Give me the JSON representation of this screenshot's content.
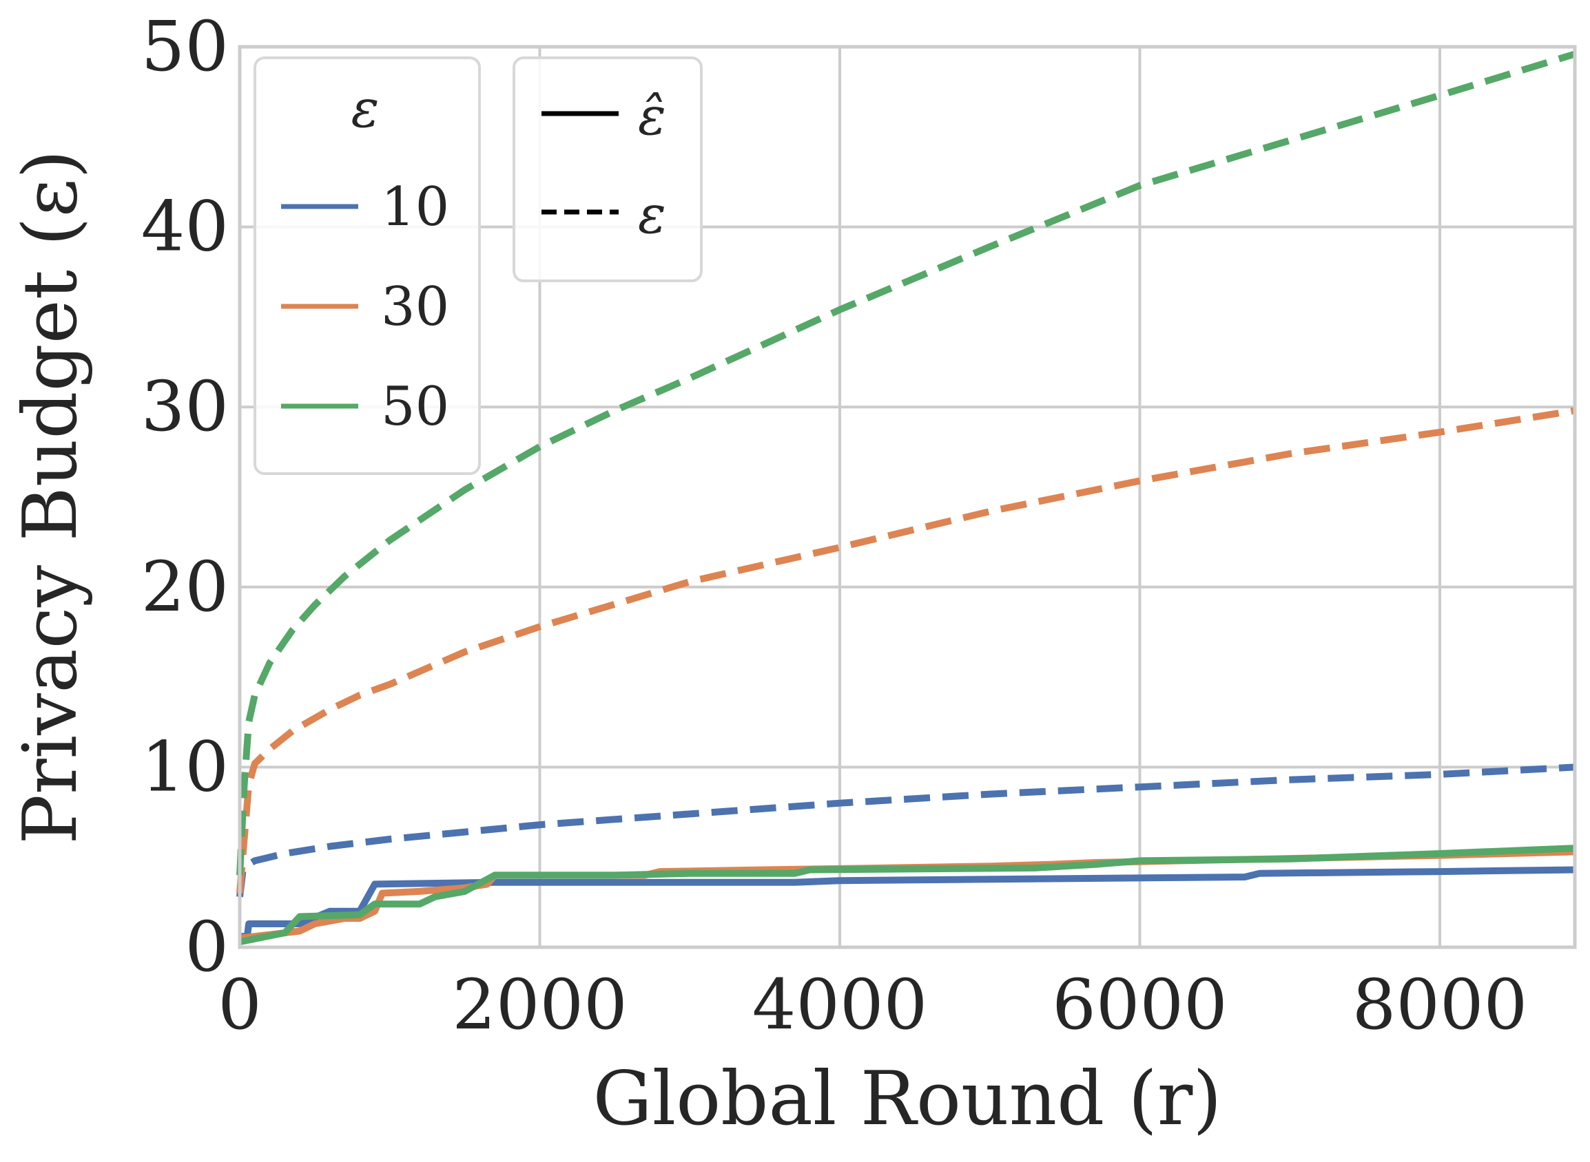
{
  "chart_data": {
    "type": "line",
    "xlabel": "Global Round (r)",
    "ylabel": "Privacy Budget (ε)",
    "xlim": [
      0,
      8900
    ],
    "ylim": [
      0,
      50
    ],
    "xticks": [
      0,
      2000,
      4000,
      6000,
      8000
    ],
    "yticks": [
      0,
      10,
      20,
      30,
      40,
      50
    ],
    "grid": true,
    "legends": [
      {
        "placement": "top-left",
        "title": "ε",
        "entries": [
          {
            "label": "10",
            "color": "#4c72b0"
          },
          {
            "label": "30",
            "color": "#dd8452"
          },
          {
            "label": "50",
            "color": "#55a868"
          }
        ]
      },
      {
        "placement": "top-left",
        "title": "",
        "entries": [
          {
            "label": "ε̂",
            "style": "solid",
            "color": "#000000"
          },
          {
            "label": "ε",
            "style": "dashed",
            "color": "#000000"
          }
        ]
      }
    ],
    "series": [
      {
        "epsilon": "10",
        "kind": "ε",
        "style": "dashed",
        "color": "#4c72b0",
        "x": [
          0,
          20,
          60,
          100,
          300,
          600,
          1000,
          1500,
          2000,
          3000,
          4000,
          5000,
          6000,
          7000,
          8000,
          8900
        ],
        "y": [
          2.8,
          4.2,
          4.6,
          4.8,
          5.2,
          5.6,
          6.0,
          6.4,
          6.8,
          7.4,
          8.0,
          8.5,
          8.9,
          9.3,
          9.6,
          10.0
        ]
      },
      {
        "epsilon": "30",
        "kind": "ε",
        "style": "dashed",
        "color": "#dd8452",
        "x": [
          0,
          30,
          60,
          100,
          200,
          350,
          600,
          800,
          1000,
          1500,
          2000,
          3000,
          4000,
          5000,
          6000,
          7000,
          8000,
          8900
        ],
        "y": [
          3.0,
          6.0,
          9.0,
          10.2,
          11.0,
          12.0,
          13.2,
          14.0,
          14.6,
          16.4,
          17.8,
          20.3,
          22.2,
          24.2,
          25.9,
          27.4,
          28.6,
          29.8
        ]
      },
      {
        "epsilon": "50",
        "kind": "ε",
        "style": "dashed",
        "color": "#55a868",
        "x": [
          0,
          30,
          60,
          100,
          200,
          350,
          500,
          700,
          1000,
          1500,
          2000,
          2500,
          3000,
          4000,
          5000,
          6000,
          7000,
          8000,
          8900
        ],
        "y": [
          4.0,
          9.0,
          12.5,
          14.0,
          15.8,
          17.6,
          19.0,
          20.6,
          22.6,
          25.4,
          27.8,
          29.8,
          31.6,
          35.4,
          38.9,
          42.3,
          44.8,
          47.3,
          49.6
        ]
      },
      {
        "epsilon": "10",
        "kind": "ε̂",
        "style": "solid",
        "color": "#4c72b0",
        "x": [
          0,
          50,
          60,
          400,
          600,
          800,
          900,
          1700,
          3700,
          4000,
          6700,
          6800,
          8000,
          8900
        ],
        "y": [
          0.6,
          0.6,
          1.3,
          1.3,
          2.0,
          2.0,
          3.5,
          3.6,
          3.6,
          3.7,
          3.9,
          4.1,
          4.2,
          4.3
        ]
      },
      {
        "epsilon": "30",
        "kind": "ε̂",
        "style": "solid",
        "color": "#dd8452",
        "x": [
          0,
          200,
          400,
          500,
          700,
          800,
          900,
          950,
          1200,
          1500,
          1650,
          1700,
          2700,
          2800,
          3500,
          5000,
          5400,
          5700,
          8000,
          8900
        ],
        "y": [
          0.5,
          0.7,
          0.9,
          1.3,
          1.6,
          1.6,
          2.0,
          3.0,
          3.1,
          3.3,
          3.5,
          4.0,
          4.0,
          4.2,
          4.3,
          4.5,
          4.6,
          4.7,
          5.1,
          5.3
        ]
      },
      {
        "epsilon": "50",
        "kind": "ε̂",
        "style": "solid",
        "color": "#55a868",
        "x": [
          0,
          300,
          400,
          800,
          900,
          1200,
          1300,
          1500,
          1700,
          2500,
          3000,
          3700,
          3800,
          5300,
          5500,
          5700,
          6000,
          7000,
          8000,
          8900
        ],
        "y": [
          0.3,
          0.8,
          1.7,
          1.8,
          2.4,
          2.4,
          2.8,
          3.1,
          4.0,
          4.0,
          4.1,
          4.1,
          4.3,
          4.4,
          4.5,
          4.6,
          4.8,
          4.9,
          5.2,
          5.5
        ]
      }
    ]
  }
}
